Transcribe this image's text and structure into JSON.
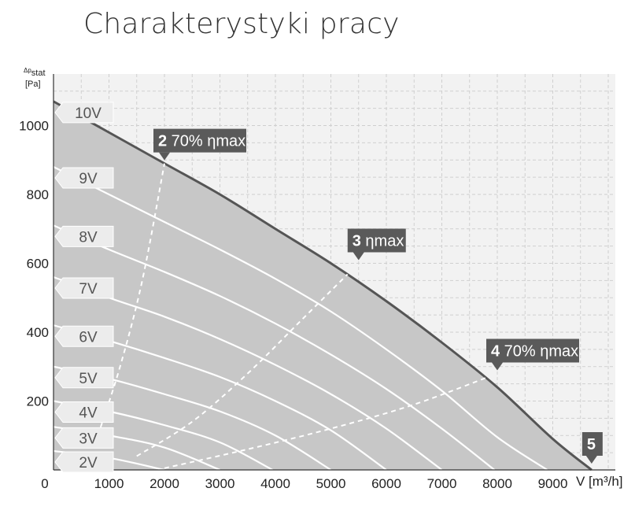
{
  "title": "Charakterystyki pracy",
  "chart_data": {
    "type": "line",
    "title": "Charakterystyki pracy",
    "xlabel": "V [m³/h]",
    "ylabel_sup": "Δp",
    "ylabel_sub": "stat",
    "ylabel_unit": "[Pa]",
    "xlim": [
      0,
      10000
    ],
    "ylim": [
      0,
      1150
    ],
    "x_ticks": [
      0,
      1000,
      2000,
      3000,
      4000,
      5000,
      6000,
      7000,
      8000,
      9000
    ],
    "x_tick_labels": [
      "0",
      "1000",
      "2000",
      "3000",
      "4000",
      "5000",
      "6000",
      "7000",
      "8000",
      "9000"
    ],
    "y_ticks": [
      200,
      400,
      600,
      800,
      1000
    ],
    "y_tick_labels": [
      "200",
      "400",
      "600",
      "800",
      "1000"
    ],
    "grid": true,
    "series": [
      {
        "name": "10V",
        "x": [
          0,
          1000,
          2000,
          3000,
          4000,
          5000,
          6000,
          7000,
          8000,
          9000,
          9700
        ],
        "y": [
          1070,
          980,
          890,
          800,
          700,
          600,
          490,
          370,
          240,
          90,
          0
        ]
      },
      {
        "name": "9V",
        "x": [
          0,
          1000,
          2000,
          3000,
          4000,
          5000,
          6000,
          7000,
          8000,
          8900
        ],
        "y": [
          880,
          800,
          720,
          640,
          555,
          460,
          350,
          230,
          95,
          0
        ]
      },
      {
        "name": "8V",
        "x": [
          0,
          1000,
          2000,
          3000,
          4000,
          5000,
          6000,
          7000,
          7950
        ],
        "y": [
          710,
          640,
          575,
          505,
          425,
          335,
          235,
          120,
          0
        ]
      },
      {
        "name": "7V",
        "x": [
          0,
          1000,
          2000,
          3000,
          4000,
          5000,
          6000,
          7000
        ],
        "y": [
          560,
          500,
          445,
          380,
          305,
          220,
          120,
          0
        ]
      },
      {
        "name": "6V",
        "x": [
          0,
          1000,
          2000,
          3000,
          4000,
          5000,
          6000
        ],
        "y": [
          420,
          375,
          325,
          270,
          200,
          115,
          0
        ]
      },
      {
        "name": "5V",
        "x": [
          0,
          1000,
          2000,
          3000,
          4000,
          5000
        ],
        "y": [
          300,
          265,
          220,
          170,
          100,
          0
        ]
      },
      {
        "name": "4V",
        "x": [
          0,
          1000,
          2000,
          3000,
          3950
        ],
        "y": [
          200,
          170,
          130,
          80,
          0
        ]
      },
      {
        "name": "3V",
        "x": [
          0,
          1000,
          2000,
          3000
        ],
        "y": [
          125,
          100,
          65,
          0
        ]
      },
      {
        "name": "2V",
        "x": [
          0,
          1000,
          2000
        ],
        "y": [
          55,
          35,
          0
        ]
      }
    ],
    "efficiency_lines": [
      {
        "name": "2 70% ηmax",
        "x": [
          800,
          1200,
          1600,
          2000
        ],
        "y": [
          100,
          300,
          550,
          890
        ]
      },
      {
        "name": "3 ηmax",
        "x": [
          1500,
          2500,
          3500,
          4500,
          5500
        ],
        "y": [
          40,
          140,
          280,
          440,
          600
        ]
      },
      {
        "name": "4 70% ηmax",
        "x": [
          2000,
          3500,
          5000,
          6500,
          8000
        ],
        "y": [
          5,
          60,
          120,
          190,
          280
        ]
      }
    ],
    "callouts": [
      {
        "num": "2",
        "text": " 70% ηmax",
        "x": 2000,
        "y": 890
      },
      {
        "num": "3",
        "text": " ηmax",
        "x": 5500,
        "y": 600
      },
      {
        "num": "4",
        "text": " 70% ηmax",
        "x": 8000,
        "y": 280
      },
      {
        "num": "5",
        "text": "",
        "x": 9700,
        "y": 0
      }
    ]
  }
}
